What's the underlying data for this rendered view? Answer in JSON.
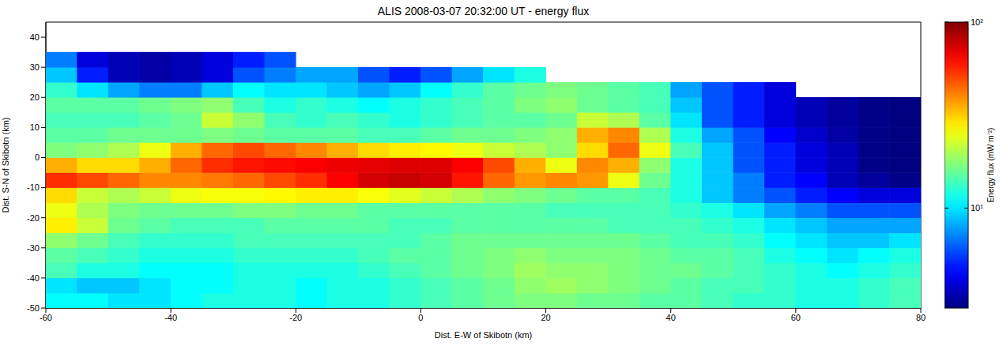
{
  "chart_data": {
    "type": "heatmap",
    "title": "ALIS 2008-03-07 20:32:00 UT - energy flux",
    "xlabel": "Dist. E-W of Skibotn (km)",
    "ylabel": "Dist. S-N of Skibotn (km)",
    "xlim": [
      -60,
      80
    ],
    "xticks": [
      -60,
      -40,
      -20,
      0,
      20,
      40,
      60,
      80
    ],
    "ylim": [
      -50,
      45
    ],
    "yticks": [
      -50,
      -40,
      -30,
      -20,
      -10,
      0,
      10,
      20,
      30,
      40
    ],
    "x": [
      -57.5,
      -52.5,
      -47.5,
      -42.5,
      -37.5,
      -32.5,
      -27.5,
      -22.5,
      -17.5,
      -12.5,
      -7.5,
      -2.5,
      2.5,
      7.5,
      12.5,
      17.5,
      22.5,
      27.5,
      32.5,
      37.5,
      42.5,
      47.5,
      52.5,
      57.5,
      62.5,
      67.5,
      72.5,
      77.5
    ],
    "y": [
      -47.5,
      -42.5,
      -37.5,
      -32.5,
      -27.5,
      -22.5,
      -17.5,
      -12.5,
      -7.5,
      -2.5,
      2.5,
      7.5,
      12.5,
      17.5,
      22.5,
      27.5,
      32.5,
      37.5,
      42.5
    ],
    "values": [
      [
        11,
        11,
        10,
        10,
        11,
        12,
        12,
        12,
        11,
        12,
        12,
        13,
        14,
        15,
        16,
        17,
        17,
        16,
        16,
        15,
        15,
        14,
        13,
        13,
        12,
        12,
        13,
        14
      ],
      [
        10,
        9,
        9,
        10,
        11,
        11,
        12,
        12,
        11,
        12,
        12,
        13,
        14,
        15,
        16,
        18,
        19,
        18,
        17,
        16,
        15,
        14,
        14,
        13,
        12,
        12,
        13,
        14
      ],
      [
        14,
        12,
        12,
        11,
        11,
        11,
        12,
        12,
        12,
        12,
        13,
        14,
        15,
        16,
        17,
        19,
        18,
        18,
        17,
        16,
        16,
        15,
        14,
        13,
        12,
        11,
        12,
        13
      ],
      [
        15,
        14,
        13,
        12,
        12,
        12,
        13,
        13,
        13,
        13,
        14,
        15,
        15,
        16,
        17,
        18,
        17,
        17,
        17,
        16,
        15,
        15,
        14,
        12,
        11,
        10,
        11,
        12
      ],
      [
        18,
        16,
        14,
        13,
        13,
        13,
        14,
        14,
        14,
        14,
        14,
        14,
        15,
        16,
        16,
        16,
        16,
        16,
        16,
        15,
        14,
        14,
        13,
        11,
        10,
        9,
        9,
        10
      ],
      [
        28,
        22,
        16,
        15,
        14,
        14,
        14,
        15,
        15,
        15,
        15,
        14,
        14,
        15,
        15,
        15,
        15,
        15,
        14,
        14,
        14,
        13,
        12,
        10,
        9,
        8,
        8,
        8
      ],
      [
        25,
        20,
        17,
        16,
        16,
        16,
        17,
        17,
        16,
        16,
        15,
        15,
        15,
        15,
        15,
        15,
        14,
        14,
        14,
        14,
        13,
        12,
        10,
        8,
        7,
        6,
        6,
        6
      ],
      [
        30,
        22,
        20,
        22,
        25,
        26,
        26,
        27,
        28,
        28,
        26,
        24,
        22,
        20,
        18,
        17,
        16,
        15,
        15,
        14,
        12,
        9,
        7,
        6,
        5,
        4.5,
        4,
        4
      ],
      [
        55,
        50,
        45,
        40,
        40,
        42,
        45,
        50,
        55,
        65,
        75,
        78,
        75,
        60,
        45,
        38,
        40,
        38,
        25,
        16,
        12,
        9,
        7,
        5,
        4.5,
        3.5,
        3.2,
        3
      ],
      [
        35,
        30,
        30,
        35,
        45,
        55,
        60,
        62,
        65,
        68,
        70,
        72,
        72,
        65,
        50,
        35,
        25,
        40,
        35,
        18,
        12,
        9,
        6,
        5,
        4,
        3.5,
        3,
        2.9
      ],
      [
        17,
        18,
        20,
        25,
        35,
        45,
        50,
        45,
        40,
        35,
        30,
        28,
        27,
        25,
        22,
        20,
        18,
        30,
        45,
        25,
        14,
        9,
        6,
        5,
        4,
        3.5,
        3,
        2.9
      ],
      [
        15,
        15,
        16,
        16,
        16,
        17,
        16,
        15,
        15,
        15,
        14,
        14,
        15,
        16,
        16,
        17,
        18,
        35,
        40,
        20,
        12,
        8,
        6,
        4.5,
        3.8,
        3.3,
        3,
        2.9
      ],
      [
        14,
        14,
        14,
        15,
        16,
        22,
        18,
        14,
        13,
        14,
        13,
        12,
        13,
        14,
        15,
        15,
        16,
        22,
        20,
        15,
        10,
        6,
        5,
        4,
        3.5,
        3.2,
        3,
        2.9
      ],
      [
        15,
        15,
        15,
        16,
        17,
        18,
        14,
        12,
        13,
        12,
        11,
        12,
        13,
        14,
        15,
        17,
        18,
        16,
        15,
        14,
        9,
        6,
        5,
        4,
        3.5,
        3.2,
        3,
        2.9
      ],
      [
        13,
        10,
        8,
        7,
        7,
        9,
        11,
        10,
        10,
        9,
        8,
        9,
        11,
        13,
        15,
        16,
        17,
        16,
        15,
        14,
        8,
        6,
        5,
        4,
        null,
        null,
        null,
        null
      ],
      [
        9,
        5,
        3.5,
        3.3,
        3.5,
        4,
        6,
        7,
        8,
        8,
        6,
        5,
        6,
        8,
        10,
        12,
        null,
        null,
        null,
        null,
        null,
        null,
        null,
        null,
        null,
        null,
        null,
        null
      ],
      [
        7,
        4,
        3.5,
        3.3,
        3.5,
        4,
        5,
        6,
        null,
        null,
        null,
        null,
        null,
        null,
        null,
        null,
        null,
        null,
        null,
        null,
        null,
        null,
        null,
        null,
        null,
        null,
        null,
        null
      ],
      [
        null,
        null,
        null,
        null,
        null,
        null,
        null,
        null,
        null,
        null,
        null,
        null,
        null,
        null,
        null,
        null,
        null,
        null,
        null,
        null,
        null,
        null,
        null,
        null,
        null,
        null,
        null,
        null
      ],
      [
        null,
        null,
        null,
        null,
        null,
        null,
        null,
        null,
        null,
        null,
        null,
        null,
        null,
        null,
        null,
        null,
        null,
        null,
        null,
        null,
        null,
        null,
        null,
        null,
        null,
        null,
        null,
        null
      ]
    ],
    "colorbar": {
      "label": "Energy flux (mW m⁻²)",
      "lim": [
        2.9,
        100
      ],
      "ticks": [
        {
          "value": 10,
          "label": "10¹"
        },
        {
          "value": 100,
          "label": "10²"
        }
      ],
      "log": true
    }
  }
}
